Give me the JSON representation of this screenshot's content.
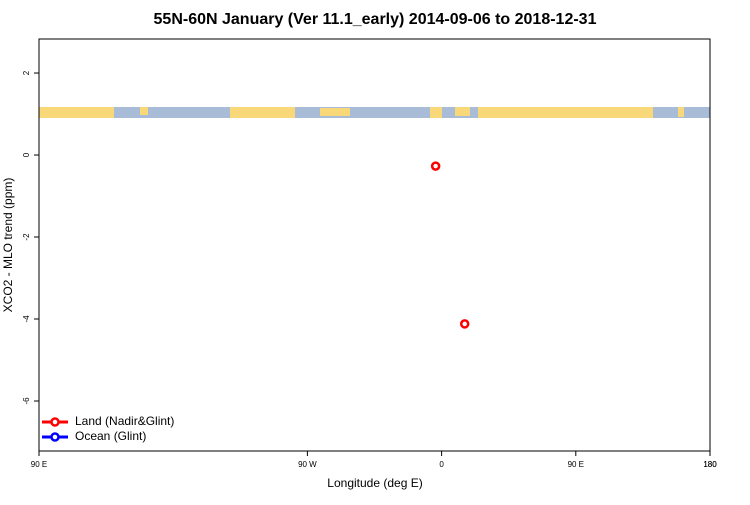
{
  "chart_data": {
    "type": "scatter",
    "title": "55N-60N January (Ver 11.1_early)   2014-09-06 to 2018-12-31",
    "xlabel": "Longitude (deg E)",
    "ylabel": "XCO2 - MLO trend (ppm)",
    "xlim": [
      -270,
      180
    ],
    "xticks": [
      {
        "value": -270,
        "label": "90 E"
      },
      180,
      {
        "value": -90,
        "label": "90 W"
      },
      0,
      {
        "value": 90,
        "label": "90 E"
      },
      180
    ],
    "ylim": [
      2.83,
      -7.22
    ],
    "yticks": [
      2,
      0,
      -2,
      -4,
      -6
    ],
    "legend": "bottom-left",
    "series": [
      {
        "name": "Land (Nadir&Glint)",
        "color": "#ff0000",
        "x": [
          -4,
          15.5
        ],
        "values": [
          -0.27,
          -4.12
        ]
      },
      {
        "name": "Ocean (Glint)",
        "color": "#0000ff",
        "x": [],
        "values": []
      }
    ]
  }
}
